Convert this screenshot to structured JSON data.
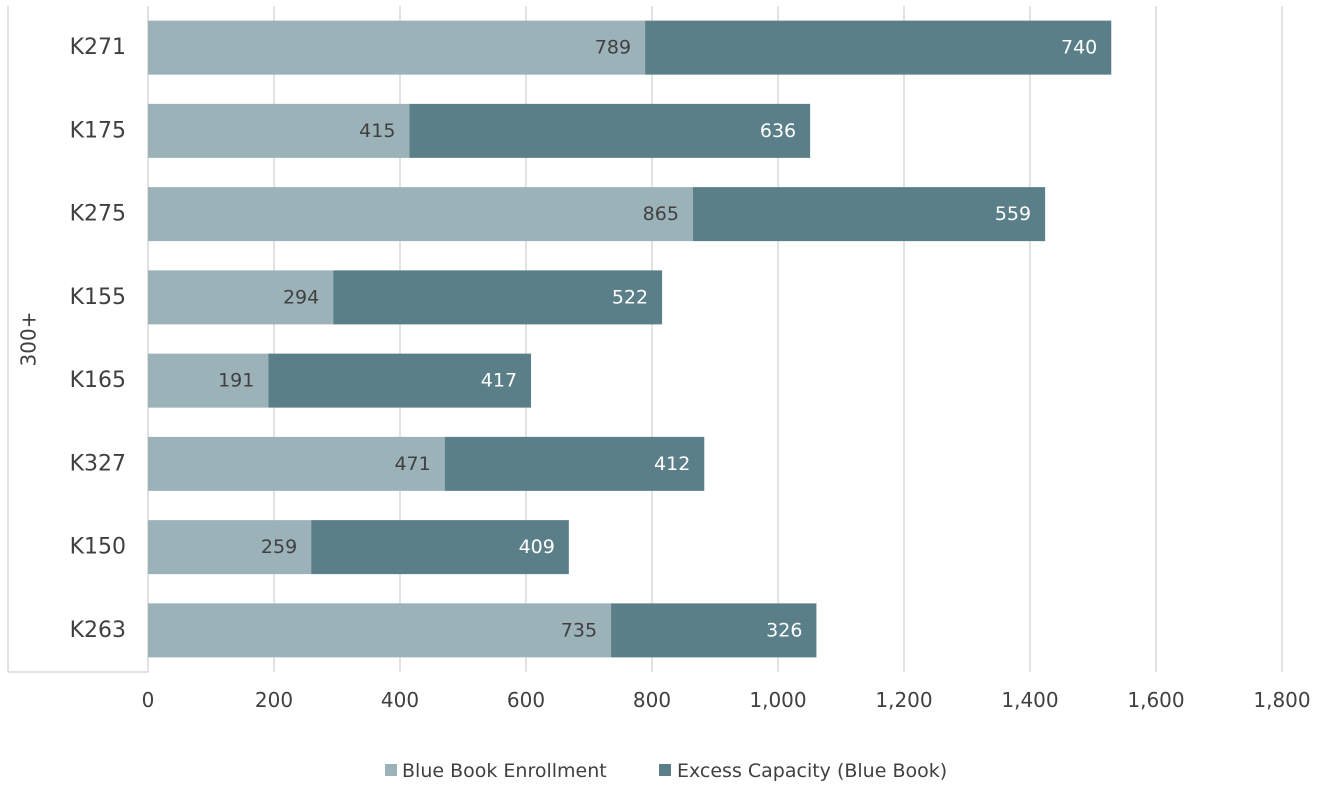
{
  "chart_data": {
    "type": "bar",
    "orientation": "horizontal",
    "stacked": true,
    "group_label": "300+",
    "categories": [
      "K271",
      "K175",
      "K275",
      "K155",
      "K165",
      "K327",
      "K150",
      "K263"
    ],
    "series": [
      {
        "name": "Blue Book Enrollment",
        "values": [
          789,
          415,
          865,
          294,
          191,
          471,
          259,
          735
        ],
        "color": "#9cb2b9"
      },
      {
        "name": "Excess Capacity (Blue Book)",
        "values": [
          740,
          636,
          559,
          522,
          417,
          412,
          409,
          326
        ],
        "color": "#5a7f88"
      }
    ],
    "x_ticks": [
      "0",
      "200",
      "400",
      "600",
      "800",
      "1,000",
      "1,200",
      "1,400",
      "1,600",
      "1,800"
    ],
    "xlim": [
      0,
      1800
    ],
    "grid": "vertical",
    "legend_position": "bottom",
    "label_colors": {
      "Blue Book Enrollment": "#404040",
      "Excess Capacity (Blue Book)": "#ffffff"
    }
  }
}
